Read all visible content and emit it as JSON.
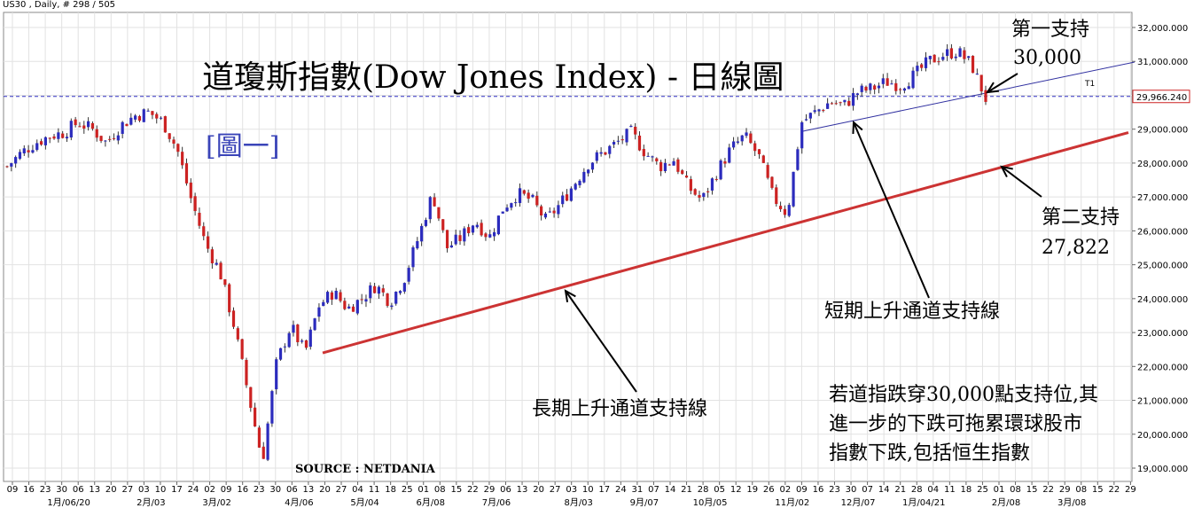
{
  "header": {
    "symbol_info": "US30 , Daily, # 298 / 505"
  },
  "title": "道瓊斯指數(Dow Jones Index) - 日線圖",
  "figure_label": "[圖一]",
  "source": "SOURCE : NETDANIA",
  "colors": {
    "up": "#2b2bbd",
    "down": "#cc2222",
    "support_line": "#cc3333",
    "channel_line": "#3030a0",
    "price_line": "#3030c0"
  },
  "annotations": {
    "first_support": "第一支持",
    "first_support_value": "30,000",
    "second_support": "第二支持",
    "second_support_value": "27,822",
    "short_channel": "短期上升通道支持線",
    "long_channel": "長期上升通道支持線",
    "note_line1": "若道指跌穿30,000點支持位,其",
    "note_line2": "進一步的下跌可拖累環球股市",
    "note_line3": "指數下跌,包括恒生指數"
  },
  "chart_data": {
    "type": "candlestick",
    "symbol": "US30",
    "period": "Daily",
    "ylim": [
      18800,
      32300
    ],
    "y_ticks": [
      "32,000.000",
      "31,000.000",
      "30,000.000",
      "29,000.000",
      "28,000.000",
      "27,000.000",
      "26,000.000",
      "25,000.000",
      "24,000.000",
      "23,000.000",
      "22,000.000",
      "21,000.000",
      "20,000.000",
      "19,000.000"
    ],
    "y_tick_values": [
      32000,
      31000,
      30000,
      29000,
      28000,
      27000,
      26000,
      25000,
      24000,
      23000,
      22000,
      21000,
      20000,
      19000
    ],
    "current_price_label": "29,966.240",
    "current_price": 29966.24,
    "marker_label": "T1",
    "x_day_labels": [
      "09",
      "16",
      "23",
      "30",
      "06",
      "13",
      "20",
      "27",
      "03",
      "10",
      "17",
      "24",
      "02",
      "09",
      "16",
      "23",
      "30",
      "06",
      "13",
      "20",
      "27",
      "04",
      "11",
      "18",
      "25",
      "01",
      "08",
      "15",
      "22",
      "29",
      "06",
      "13",
      "20",
      "27",
      "03",
      "10",
      "17",
      "24",
      "31",
      "07",
      "14",
      "21",
      "28",
      "05",
      "12",
      "19",
      "26",
      "02",
      "09",
      "16",
      "23",
      "30",
      "07",
      "14",
      "21",
      "28",
      "04",
      "11",
      "18",
      "25",
      "01",
      "08",
      "15",
      "22",
      "29",
      "08",
      "15",
      "22",
      "29"
    ],
    "x_month_labels": [
      "1月/06/20",
      "2月/03",
      "3月/02",
      "4月/06",
      "5月/04",
      "6月/08",
      "7月/06",
      "8月/03",
      "9月/07",
      "10月/05",
      "11月/02",
      "12月/07",
      "1月/04/21",
      "2月/08",
      "3月/08"
    ],
    "close_path": [
      27900,
      28300,
      28600,
      28800,
      28900,
      29200,
      29000,
      28600,
      29100,
      29400,
      29500,
      29200,
      28400,
      26900,
      25600,
      24800,
      23200,
      21200,
      19200,
      22100,
      23200,
      22400,
      23800,
      24200,
      23700,
      24000,
      24400,
      23900,
      24600,
      25800,
      27100,
      25500,
      25800,
      26300,
      25800,
      26700,
      27100,
      26900,
      26300,
      26800,
      27400,
      28000,
      28300,
      28600,
      28900,
      28300,
      27900,
      28100,
      27300,
      26900,
      27700,
      28400,
      28800,
      28200,
      27000,
      26500,
      29200,
      29500,
      29800,
      29700,
      30100,
      30200,
      30400,
      30300,
      30600,
      31000,
      31200,
      31300,
      30900,
      29900
    ],
    "events": {
      "long_support_start": [
        73,
        22400
      ],
      "long_support_end": [
        1273,
        28900
      ],
      "short_support_start": [
        904,
        28930
      ],
      "short_support_end": [
        1280,
        30980
      ]
    }
  }
}
